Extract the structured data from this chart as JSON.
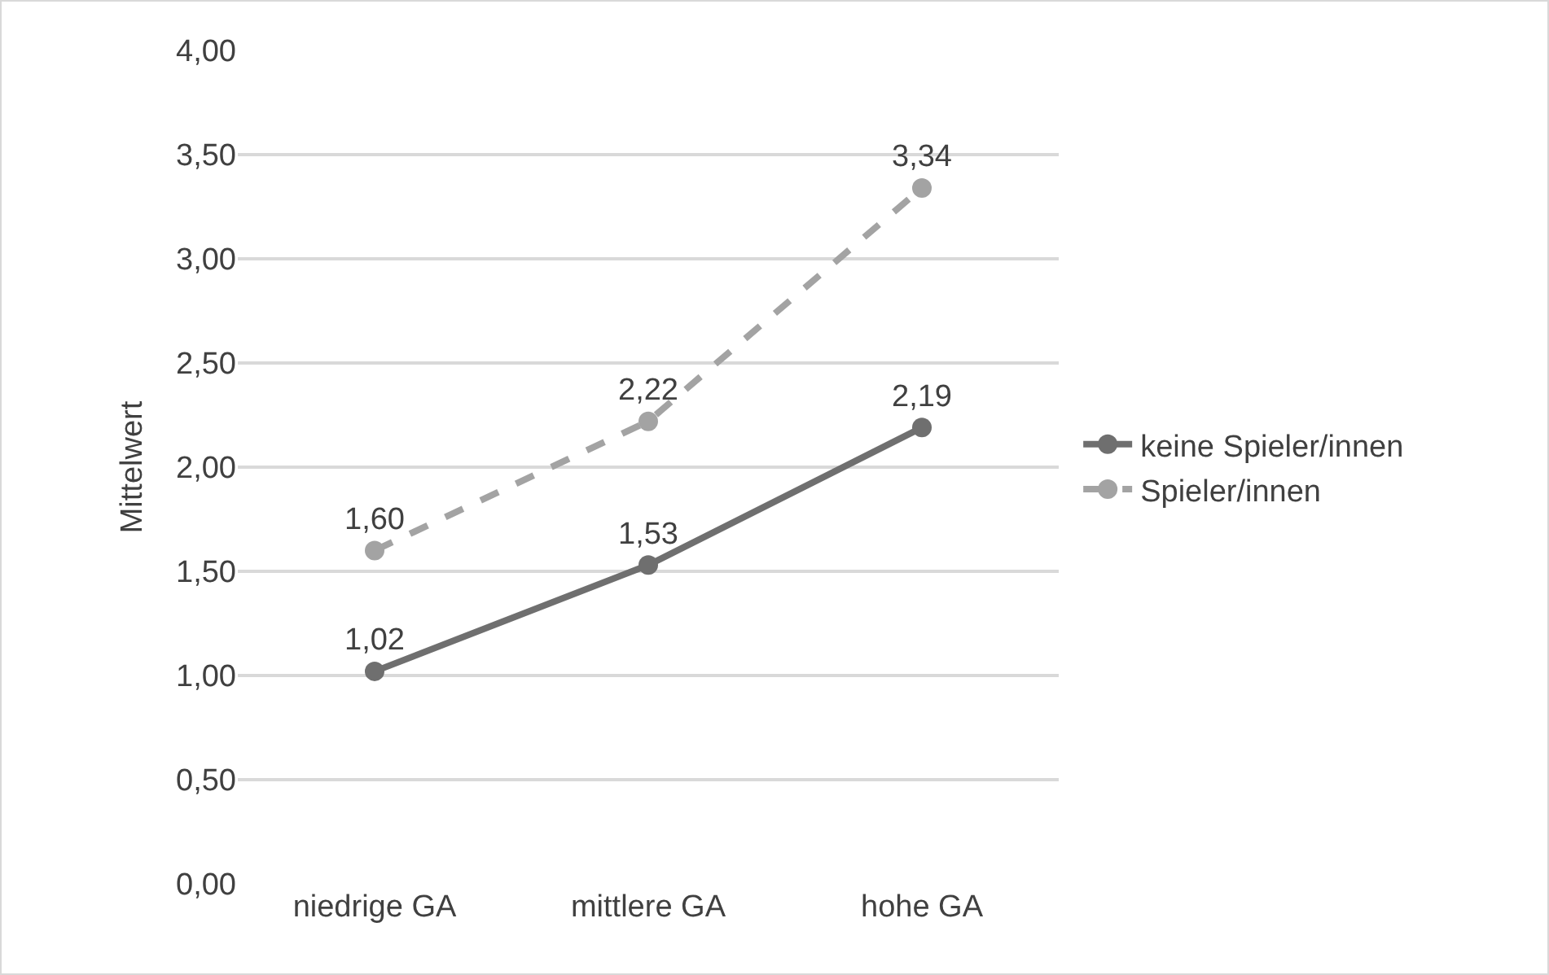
{
  "chart_data": {
    "type": "line",
    "ylabel": "Mittelwert",
    "categories": [
      "niedrige GA",
      "mittlere GA",
      "hohe GA"
    ],
    "series": [
      {
        "name": "keine Spieler/innen",
        "color": "#6f6f6f",
        "values": [
          1.02,
          1.53,
          2.19
        ],
        "value_labels": [
          "1,02",
          "1,53",
          "2,19"
        ],
        "line_style": "solid"
      },
      {
        "name": "Spieler/innen",
        "color": "#a3a3a3",
        "values": [
          1.6,
          2.22,
          3.34
        ],
        "value_labels": [
          "1,60",
          "2,22",
          "3,34"
        ],
        "line_style": "dashed"
      }
    ],
    "ylim": [
      0,
      4
    ],
    "yticks": [
      {
        "value": 0,
        "label": "0,00"
      },
      {
        "value": 0.5,
        "label": "0,50"
      },
      {
        "value": 1,
        "label": "1,00"
      },
      {
        "value": 1.5,
        "label": "1,50"
      },
      {
        "value": 2,
        "label": "2,00"
      },
      {
        "value": 2.5,
        "label": "2,50"
      },
      {
        "value": 3,
        "label": "3,00"
      },
      {
        "value": 3.5,
        "label": "3,50"
      },
      {
        "value": 4,
        "label": "4,00"
      }
    ],
    "grid": "y",
    "legend": "right",
    "marker": "circle"
  }
}
